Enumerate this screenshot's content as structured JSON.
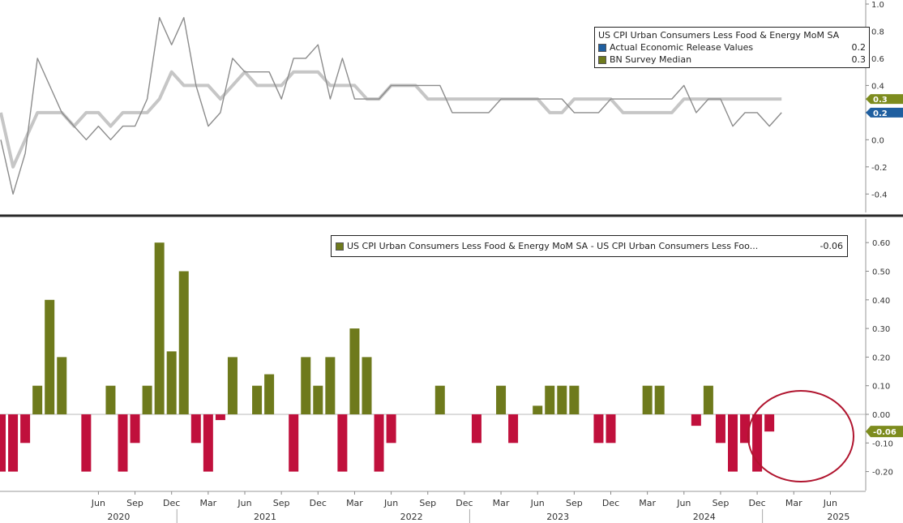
{
  "chart_data": [
    {
      "type": "line",
      "x_start": "2019-10",
      "ylim": [
        -0.5,
        1.0
      ],
      "y_ticks": [
        "-0.4",
        "-0.2",
        "0.0",
        "0.2",
        "0.4",
        "0.6",
        "0.8",
        "1.0"
      ],
      "y_tick_values": [
        -0.4,
        -0.2,
        0.0,
        0.2,
        0.4,
        0.6,
        0.8,
        1.0
      ],
      "legend_placement": "top-right",
      "legend": [
        {
          "label": "US CPI Urban Consumers Less Food & Energy MoM SA",
          "value": ""
        },
        {
          "label": "Actual Economic Release Values",
          "value": "0.2"
        },
        {
          "label": "BN Survey Median",
          "value": "0.3"
        }
      ],
      "series": [
        {
          "name": "US CPI Urban Consumers Less Food & Energy MoM SA",
          "color": "#8c8c8c",
          "values": [
            0.0,
            -0.4,
            -0.1,
            0.6,
            0.4,
            0.2,
            0.1,
            0.0,
            0.1,
            0.0,
            0.1,
            0.1,
            0.3,
            0.9,
            0.7,
            0.9,
            0.4,
            0.1,
            0.2,
            0.6,
            0.5,
            0.5,
            0.5,
            0.3,
            0.6,
            0.6,
            0.7,
            0.3,
            0.6,
            0.3,
            0.3,
            0.3,
            0.4,
            0.4,
            0.4,
            0.4,
            0.4,
            0.2,
            0.2,
            0.2,
            0.2,
            0.3,
            0.3,
            0.3,
            0.3,
            0.3,
            0.3,
            0.2,
            0.2,
            0.2,
            0.3,
            0.3,
            0.3,
            0.3,
            0.3,
            0.3,
            0.4,
            0.2,
            0.3,
            0.3,
            0.1,
            0.2,
            0.2,
            0.1,
            0.2
          ]
        },
        {
          "name": "BN Survey Median",
          "color": "#c6c6c6",
          "values": [
            0.2,
            -0.2,
            0.0,
            0.2,
            0.2,
            0.2,
            0.1,
            0.2,
            0.2,
            0.1,
            0.2,
            0.2,
            0.2,
            0.3,
            0.5,
            0.4,
            0.4,
            0.4,
            0.3,
            0.4,
            0.5,
            0.4,
            0.4,
            0.4,
            0.5,
            0.5,
            0.5,
            0.4,
            0.4,
            0.4,
            0.3,
            0.3,
            0.4,
            0.4,
            0.4,
            0.3,
            0.3,
            0.3,
            0.3,
            0.3,
            0.3,
            0.3,
            0.3,
            0.3,
            0.3,
            0.2,
            0.2,
            0.3,
            0.3,
            0.3,
            0.3,
            0.2,
            0.2,
            0.2,
            0.2,
            0.2,
            0.3,
            0.3,
            0.3,
            0.3,
            0.3,
            0.3,
            0.3,
            0.3,
            0.3
          ]
        }
      ],
      "last_value_labels": [
        {
          "text": "0.3",
          "color": "#7d8c1e"
        },
        {
          "text": "0.2",
          "color": "#1f5fa0"
        }
      ]
    },
    {
      "type": "bar",
      "x_start": "2019-10",
      "ylim": [
        -0.27,
        0.65
      ],
      "y_ticks": [
        "-0.20",
        "-0.10",
        "0.00",
        "0.10",
        "0.20",
        "0.30",
        "0.40",
        "0.50",
        "0.60"
      ],
      "y_tick_values": [
        -0.2,
        -0.1,
        0.0,
        0.1,
        0.2,
        0.3,
        0.4,
        0.5,
        0.6
      ],
      "legend_placement": "top-right",
      "legend": [
        {
          "label": "US CPI Urban Consumers Less Food & Energy MoM SA - US CPI Urban Consumers Less Foo...",
          "value": "-0.06"
        }
      ],
      "series": [
        {
          "name": "US CPI Urban Consumers Less Food & Energy MoM SA - US CPI Urban Consumers Less Foo...",
          "positive_color": "#6e7a1c",
          "negative_color": "#c0103c",
          "values": [
            -0.2,
            -0.2,
            -0.1,
            0.1,
            0.4,
            0.2,
            0.0,
            -0.2,
            0.0,
            0.1,
            -0.2,
            -0.1,
            0.1,
            0.6,
            0.22,
            0.5,
            -0.1,
            -0.2,
            -0.02,
            0.2,
            0.0,
            0.1,
            0.14,
            0.0,
            -0.2,
            0.2,
            0.1,
            0.2,
            -0.2,
            0.3,
            0.2,
            -0.2,
            -0.1,
            0.0,
            0.0,
            0.0,
            0.1,
            0.0,
            0.0,
            -0.1,
            0.0,
            0.1,
            -0.1,
            0.0,
            0.03,
            0.1,
            0.1,
            0.1,
            0.0,
            -0.1,
            -0.1,
            0.0,
            0.0,
            0.1,
            0.1,
            0.0,
            0.0,
            -0.04,
            0.1,
            -0.1,
            -0.2,
            -0.1,
            -0.2,
            -0.06
          ]
        }
      ],
      "last_value_label": {
        "text": "-0.06",
        "color": "#7d8c1e"
      }
    }
  ],
  "x_axis": {
    "month_ticks": [
      {
        "label": "Jun",
        "index": 8
      },
      {
        "label": "Sep",
        "index": 11
      },
      {
        "label": "Dec",
        "index": 14
      },
      {
        "label": "Mar",
        "index": 17
      },
      {
        "label": "Jun",
        "index": 20
      },
      {
        "label": "Sep",
        "index": 23
      },
      {
        "label": "Dec",
        "index": 26
      },
      {
        "label": "Mar",
        "index": 29
      },
      {
        "label": "Jun",
        "index": 32
      },
      {
        "label": "Sep",
        "index": 35
      },
      {
        "label": "Dec",
        "index": 38
      },
      {
        "label": "Mar",
        "index": 41
      },
      {
        "label": "Jun",
        "index": 44
      },
      {
        "label": "Sep",
        "index": 47
      },
      {
        "label": "Dec",
        "index": 50
      },
      {
        "label": "Mar",
        "index": 53
      },
      {
        "label": "Jun",
        "index": 56
      },
      {
        "label": "Sep",
        "index": 59
      },
      {
        "label": "Dec",
        "index": 62
      },
      {
        "label": "Mar",
        "index": 65
      },
      {
        "label": "Jun",
        "index": 68
      }
    ],
    "years": [
      {
        "label": "2020",
        "index": 8
      },
      {
        "label": "2021",
        "index": 20
      },
      {
        "label": "2022",
        "index": 32
      },
      {
        "label": "2023",
        "index": 44
      },
      {
        "label": "2024",
        "index": 56
      },
      {
        "label": "2025",
        "index": 67
      }
    ]
  },
  "colors": {
    "background": "#ffffff",
    "divider": "#2a2a2a",
    "annotation_circle": "#b0142e",
    "axis_text": "#333333"
  }
}
